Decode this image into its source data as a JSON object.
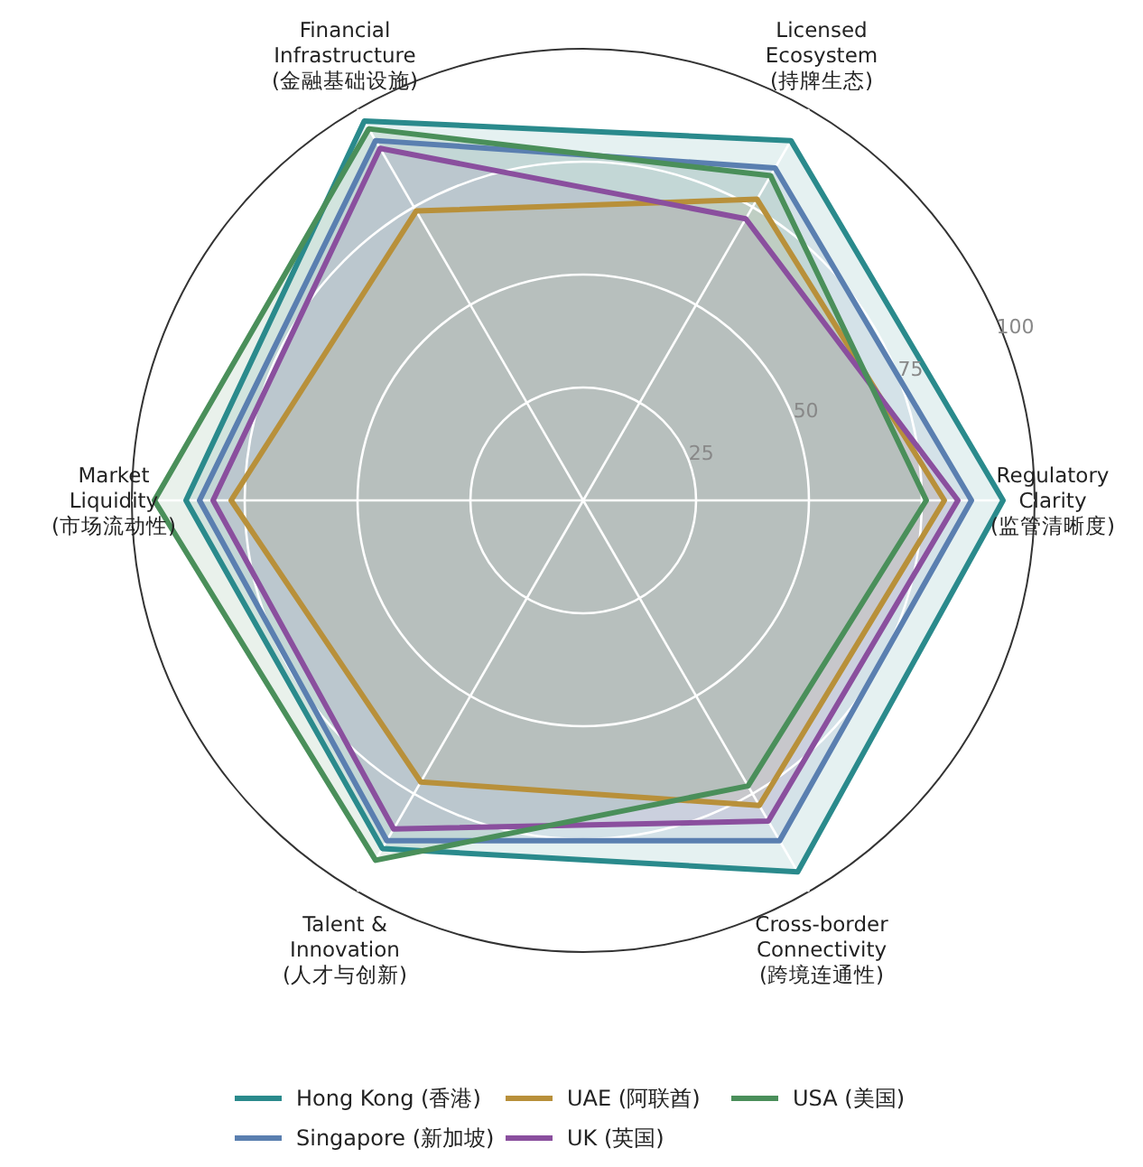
{
  "chart_data": {
    "type": "radar",
    "categories": [
      "Licensed\nEcosystem\n(持牌生态)",
      "Regulatory\nClarity\n(监管清晰度)",
      "Cross-border\nConnectivity\n(跨境连通性)",
      "Talent &\nInnovation\n(人才与创新)",
      "Market\nLiquidity\n(市场流动性)",
      "Financial\nInfrastructure\n(金融基础设施)"
    ],
    "ylim": [
      0,
      100
    ],
    "yticks": [
      25,
      50,
      75,
      100
    ],
    "grid": true,
    "legend": "bottom",
    "marker": "none",
    "line_style": "solid",
    "series": [
      {
        "name": "Hong Kong (香港)",
        "color": "#2a8a8c",
        "values": [
          92,
          93,
          95,
          89,
          88,
          97
        ]
      },
      {
        "name": "Singapore (新加坡)",
        "color": "#5a7fb0",
        "values": [
          85,
          86,
          87,
          87,
          85,
          92
        ]
      },
      {
        "name": "UAE (阿联酋)",
        "color": "#b8903a",
        "values": [
          77,
          80,
          78,
          72,
          78,
          74
        ]
      },
      {
        "name": "UK (英国)",
        "color": "#8a4f9e",
        "values": [
          72,
          83,
          82,
          84,
          82,
          90
        ]
      },
      {
        "name": "USA (美国)",
        "color": "#4a8f5a",
        "values": [
          83,
          76,
          73,
          92,
          95,
          95
        ]
      }
    ]
  }
}
